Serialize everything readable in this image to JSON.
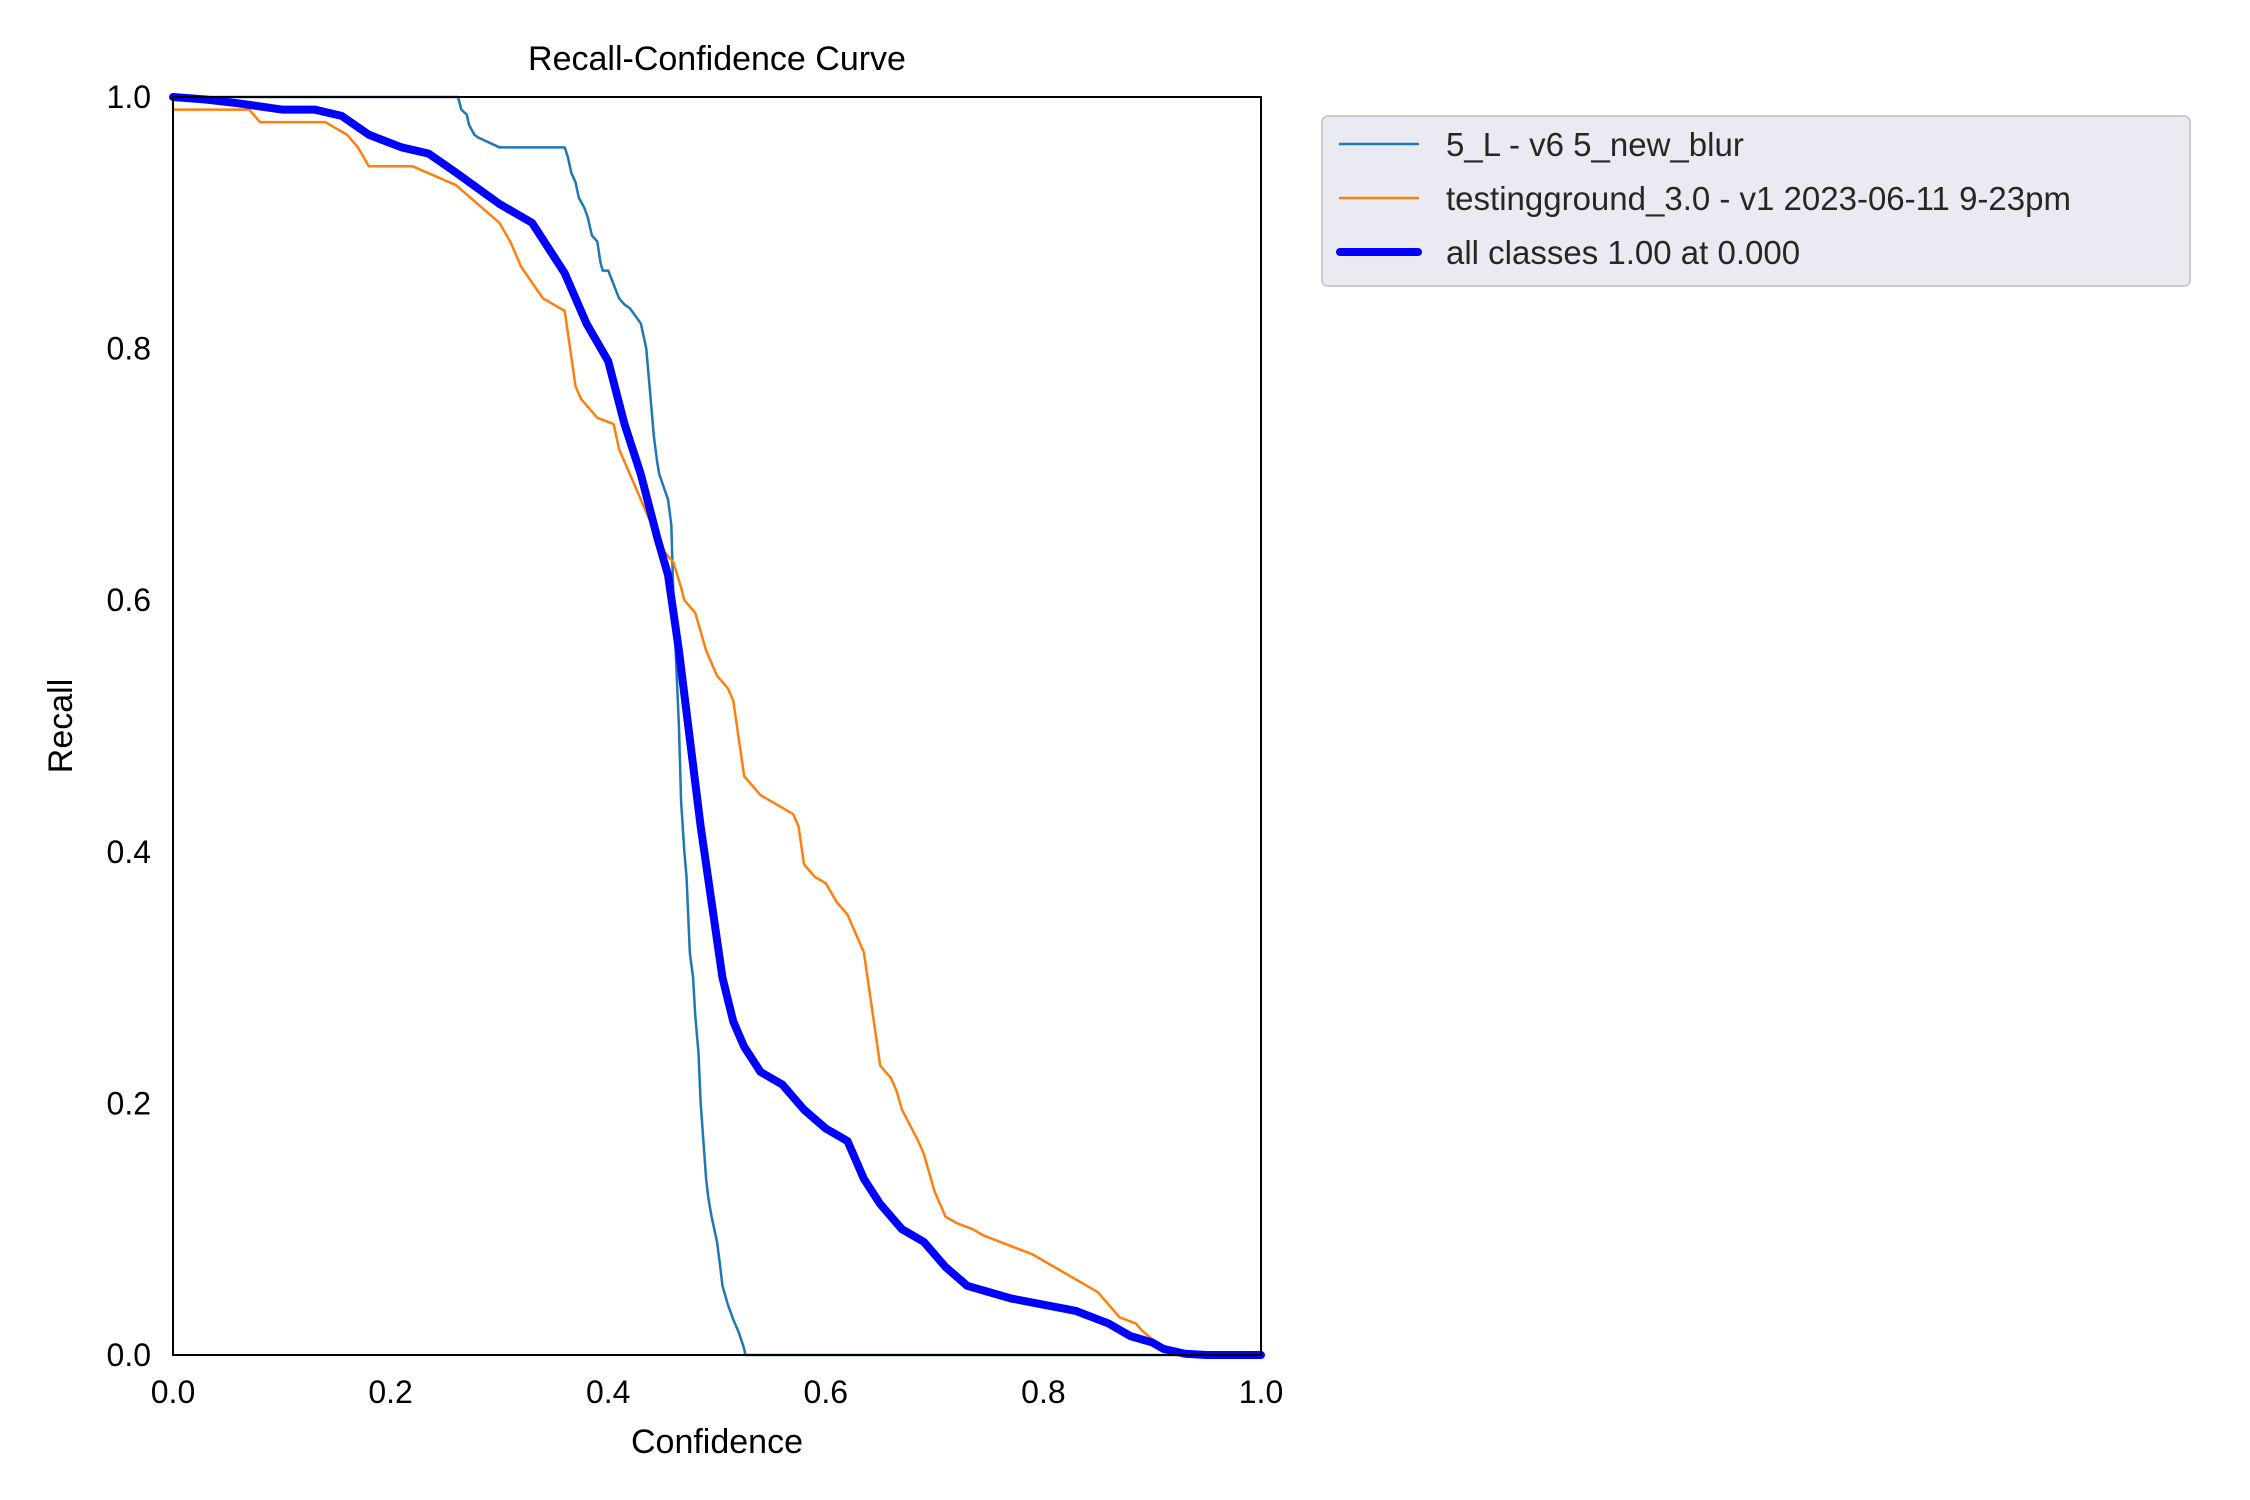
{
  "chart_data": {
    "type": "line",
    "title": "Recall-Confidence Curve",
    "xlabel": "Confidence",
    "ylabel": "Recall",
    "xlim": [
      0,
      1
    ],
    "ylim": [
      0,
      1
    ],
    "xticks": [
      "0.0",
      "0.2",
      "0.4",
      "0.6",
      "0.8",
      "1.0"
    ],
    "yticks": [
      "0.0",
      "0.2",
      "0.4",
      "0.6",
      "0.8",
      "1.0"
    ],
    "grid": false,
    "legend_position": "outside-upper-right",
    "series": [
      {
        "name": "5_L - v6 5_new_blur",
        "color": "#1f77b4",
        "width": "thin",
        "x": [
          0,
          0.262,
          0.265,
          0.27,
          0.272,
          0.277,
          0.28,
          0.3,
          0.31,
          0.33,
          0.36,
          0.363,
          0.366,
          0.37,
          0.373,
          0.378,
          0.381,
          0.385,
          0.39,
          0.393,
          0.395,
          0.4,
          0.41,
          0.415,
          0.42,
          0.43,
          0.435,
          0.437,
          0.44,
          0.442,
          0.445,
          0.447,
          0.455,
          0.458,
          0.46,
          0.463,
          0.465,
          0.467,
          0.47,
          0.472,
          0.475,
          0.478,
          0.48,
          0.483,
          0.485,
          0.49,
          0.492,
          0.495,
          0.5,
          0.503,
          0.505,
          0.51,
          0.513,
          0.515,
          0.52,
          0.525,
          0.526,
          1.0
        ],
        "y": [
          1.0,
          1.0,
          0.99,
          0.986,
          0.978,
          0.97,
          0.968,
          0.96,
          0.96,
          0.96,
          0.96,
          0.952,
          0.94,
          0.932,
          0.92,
          0.912,
          0.905,
          0.89,
          0.885,
          0.868,
          0.862,
          0.862,
          0.84,
          0.835,
          0.832,
          0.82,
          0.8,
          0.78,
          0.75,
          0.73,
          0.71,
          0.7,
          0.68,
          0.66,
          0.6,
          0.54,
          0.5,
          0.44,
          0.4,
          0.38,
          0.32,
          0.3,
          0.27,
          0.24,
          0.2,
          0.14,
          0.125,
          0.11,
          0.09,
          0.07,
          0.055,
          0.04,
          0.033,
          0.028,
          0.018,
          0.005,
          0,
          0
        ]
      },
      {
        "name": "testingground_3.0 - v1 2023-06-11 9-23pm",
        "color": "#ff7f0e",
        "width": "thin",
        "x": [
          0,
          0.07,
          0.08,
          0.14,
          0.16,
          0.17,
          0.18,
          0.22,
          0.26,
          0.3,
          0.31,
          0.32,
          0.34,
          0.36,
          0.365,
          0.37,
          0.375,
          0.38,
          0.39,
          0.405,
          0.41,
          0.42,
          0.425,
          0.43,
          0.44,
          0.445,
          0.45,
          0.46,
          0.467,
          0.47,
          0.48,
          0.485,
          0.49,
          0.5,
          0.51,
          0.515,
          0.52,
          0.525,
          0.53,
          0.54,
          0.55,
          0.57,
          0.575,
          0.58,
          0.59,
          0.6,
          0.61,
          0.62,
          0.63,
          0.635,
          0.64,
          0.65,
          0.66,
          0.665,
          0.67,
          0.685,
          0.69,
          0.7,
          0.705,
          0.71,
          0.72,
          0.735,
          0.745,
          0.76,
          0.79,
          0.81,
          0.83,
          0.85,
          0.87,
          0.885,
          0.89,
          0.91,
          0.92,
          1.0
        ],
        "y": [
          0.99,
          0.99,
          0.98,
          0.98,
          0.97,
          0.96,
          0.945,
          0.945,
          0.93,
          0.9,
          0.885,
          0.865,
          0.84,
          0.83,
          0.8,
          0.77,
          0.76,
          0.755,
          0.745,
          0.74,
          0.72,
          0.7,
          0.69,
          0.68,
          0.66,
          0.655,
          0.64,
          0.63,
          0.61,
          0.6,
          0.59,
          0.575,
          0.56,
          0.54,
          0.53,
          0.52,
          0.49,
          0.46,
          0.455,
          0.445,
          0.44,
          0.43,
          0.42,
          0.39,
          0.38,
          0.375,
          0.36,
          0.35,
          0.33,
          0.32,
          0.29,
          0.23,
          0.22,
          0.21,
          0.195,
          0.17,
          0.16,
          0.13,
          0.12,
          0.11,
          0.105,
          0.1,
          0.095,
          0.09,
          0.08,
          0.07,
          0.06,
          0.05,
          0.03,
          0.025,
          0.02,
          0.005,
          0,
          0
        ]
      },
      {
        "name": "all classes 1.00 at 0.000",
        "color": "#0000ff",
        "width": "thick",
        "x": [
          0,
          0.03,
          0.06,
          0.1,
          0.13,
          0.155,
          0.18,
          0.21,
          0.235,
          0.26,
          0.3,
          0.33,
          0.345,
          0.36,
          0.38,
          0.4,
          0.415,
          0.43,
          0.445,
          0.455,
          0.465,
          0.475,
          0.485,
          0.495,
          0.505,
          0.515,
          0.525,
          0.54,
          0.56,
          0.58,
          0.6,
          0.62,
          0.635,
          0.65,
          0.67,
          0.69,
          0.71,
          0.73,
          0.75,
          0.77,
          0.8,
          0.83,
          0.86,
          0.88,
          0.9,
          0.91,
          0.92,
          0.93,
          0.95,
          1.0
        ],
        "y": [
          1.0,
          0.998,
          0.995,
          0.99,
          0.99,
          0.985,
          0.97,
          0.96,
          0.955,
          0.94,
          0.915,
          0.9,
          0.88,
          0.86,
          0.82,
          0.79,
          0.74,
          0.7,
          0.65,
          0.62,
          0.56,
          0.49,
          0.42,
          0.36,
          0.3,
          0.265,
          0.245,
          0.225,
          0.215,
          0.195,
          0.18,
          0.17,
          0.14,
          0.12,
          0.1,
          0.09,
          0.07,
          0.055,
          0.05,
          0.045,
          0.04,
          0.035,
          0.025,
          0.015,
          0.01,
          0.005,
          0.003,
          0.001,
          0,
          0
        ]
      }
    ]
  }
}
